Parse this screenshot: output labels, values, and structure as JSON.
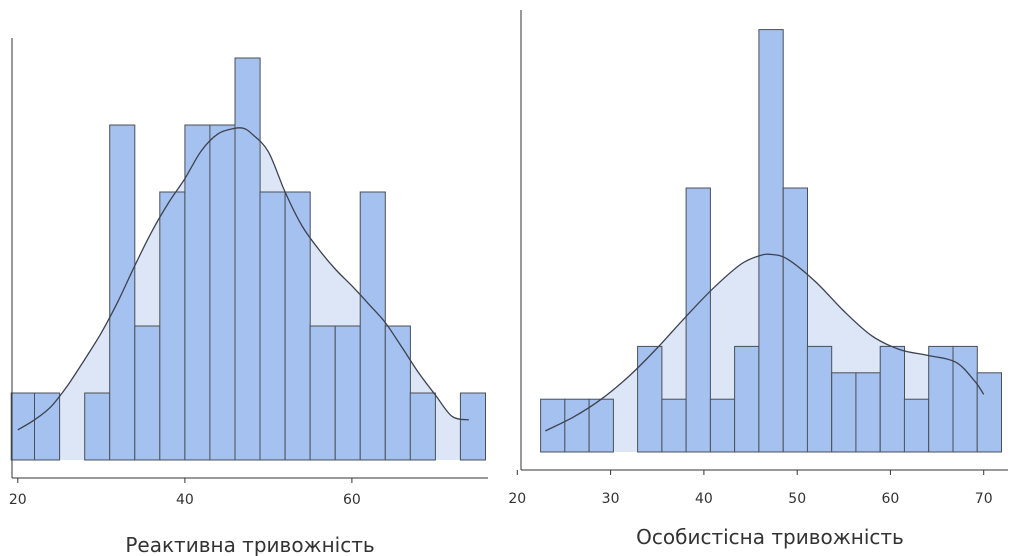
{
  "colors": {
    "bar_fill": "#a4c1ef",
    "bar_edge": "#4a4f57",
    "kde_fill": "#dce6f6",
    "kde_line": "#3d4250",
    "axis": "#333333"
  },
  "chart_data": [
    {
      "type": "bar",
      "subtype": "histogram-with-density",
      "xlabel": "Реактивна тривожність",
      "ylabel": "",
      "title": "",
      "xlim": [
        19.3,
        76.3
      ],
      "ylim": [
        0,
        6
      ],
      "xticks": [
        20,
        40,
        60
      ],
      "grid": false,
      "legend": "none",
      "bins": [
        {
          "x0": 19.2,
          "x1": 22.0,
          "count": 1
        },
        {
          "x0": 22.0,
          "x1": 25.0,
          "count": 1
        },
        {
          "x0": 25.0,
          "x1": 28.0,
          "count": 0
        },
        {
          "x0": 28.0,
          "x1": 31.0,
          "count": 1
        },
        {
          "x0": 31.0,
          "x1": 34.0,
          "count": 5
        },
        {
          "x0": 34.0,
          "x1": 37.0,
          "count": 2
        },
        {
          "x0": 37.0,
          "x1": 40.0,
          "count": 4
        },
        {
          "x0": 40.0,
          "x1": 43.0,
          "count": 5
        },
        {
          "x0": 43.0,
          "x1": 46.0,
          "count": 5
        },
        {
          "x0": 46.0,
          "x1": 49.0,
          "count": 6
        },
        {
          "x0": 49.0,
          "x1": 52.0,
          "count": 4
        },
        {
          "x0": 52.0,
          "x1": 55.0,
          "count": 4
        },
        {
          "x0": 55.0,
          "x1": 58.0,
          "count": 2
        },
        {
          "x0": 58.0,
          "x1": 61.0,
          "count": 2
        },
        {
          "x0": 61.0,
          "x1": 64.0,
          "count": 4
        },
        {
          "x0": 64.0,
          "x1": 67.0,
          "count": 2
        },
        {
          "x0": 67.0,
          "x1": 70.0,
          "count": 1
        },
        {
          "x0": 70.0,
          "x1": 73.0,
          "count": 0
        },
        {
          "x0": 73.0,
          "x1": 76.0,
          "count": 1
        }
      ],
      "kde": {
        "x": [
          20,
          22,
          24,
          26,
          28,
          30,
          32,
          34,
          36,
          38,
          40,
          42,
          44,
          46,
          47,
          48,
          50,
          52,
          54,
          56,
          58,
          60,
          62,
          64,
          66,
          68,
          70,
          72,
          74
        ],
        "y": [
          0.45,
          0.6,
          0.8,
          1.12,
          1.5,
          1.9,
          2.37,
          2.9,
          3.4,
          3.83,
          4.2,
          4.62,
          4.87,
          4.95,
          4.95,
          4.87,
          4.6,
          4.0,
          3.5,
          3.15,
          2.85,
          2.6,
          2.33,
          2.05,
          1.68,
          1.3,
          0.97,
          0.65,
          0.6
        ]
      }
    },
    {
      "type": "bar",
      "subtype": "histogram-with-density",
      "xlabel": "Особистісна тривожність",
      "ylabel": "",
      "title": "",
      "xlim": [
        20.4,
        72.6
      ],
      "ylim": [
        0,
        8
      ],
      "xticks": [
        20,
        30,
        40,
        50,
        60,
        70
      ],
      "grid": false,
      "legend": "none",
      "bins": [
        {
          "x0": 22.5,
          "x1": 25.1,
          "count": 1
        },
        {
          "x0": 25.1,
          "x1": 27.7,
          "count": 1
        },
        {
          "x0": 27.7,
          "x1": 30.3,
          "count": 1
        },
        {
          "x0": 30.3,
          "x1": 32.9,
          "count": 0
        },
        {
          "x0": 32.9,
          "x1": 35.5,
          "count": 2
        },
        {
          "x0": 35.5,
          "x1": 38.1,
          "count": 1
        },
        {
          "x0": 38.1,
          "x1": 40.7,
          "count": 5
        },
        {
          "x0": 40.7,
          "x1": 43.3,
          "count": 1
        },
        {
          "x0": 43.3,
          "x1": 45.9,
          "count": 2
        },
        {
          "x0": 45.9,
          "x1": 48.5,
          "count": 8
        },
        {
          "x0": 48.5,
          "x1": 51.1,
          "count": 5
        },
        {
          "x0": 51.1,
          "x1": 53.7,
          "count": 2
        },
        {
          "x0": 53.7,
          "x1": 56.3,
          "count": 1.5
        },
        {
          "x0": 56.3,
          "x1": 58.9,
          "count": 1.5
        },
        {
          "x0": 58.9,
          "x1": 61.5,
          "count": 2
        },
        {
          "x0": 61.5,
          "x1": 64.1,
          "count": 1
        },
        {
          "x0": 64.1,
          "x1": 66.7,
          "count": 2
        },
        {
          "x0": 66.7,
          "x1": 69.3,
          "count": 2
        },
        {
          "x0": 69.3,
          "x1": 71.9,
          "count": 1.5
        }
      ],
      "kde": {
        "x": [
          23,
          26,
          29,
          32,
          35,
          38,
          41,
          44,
          46,
          47.3,
          49,
          52,
          55,
          58,
          61,
          64,
          67,
          69,
          70
        ],
        "y": [
          0.4,
          0.66,
          1.0,
          1.44,
          1.97,
          2.55,
          3.1,
          3.56,
          3.72,
          3.74,
          3.65,
          3.22,
          2.67,
          2.2,
          1.94,
          1.83,
          1.7,
          1.35,
          1.09
        ]
      }
    }
  ]
}
